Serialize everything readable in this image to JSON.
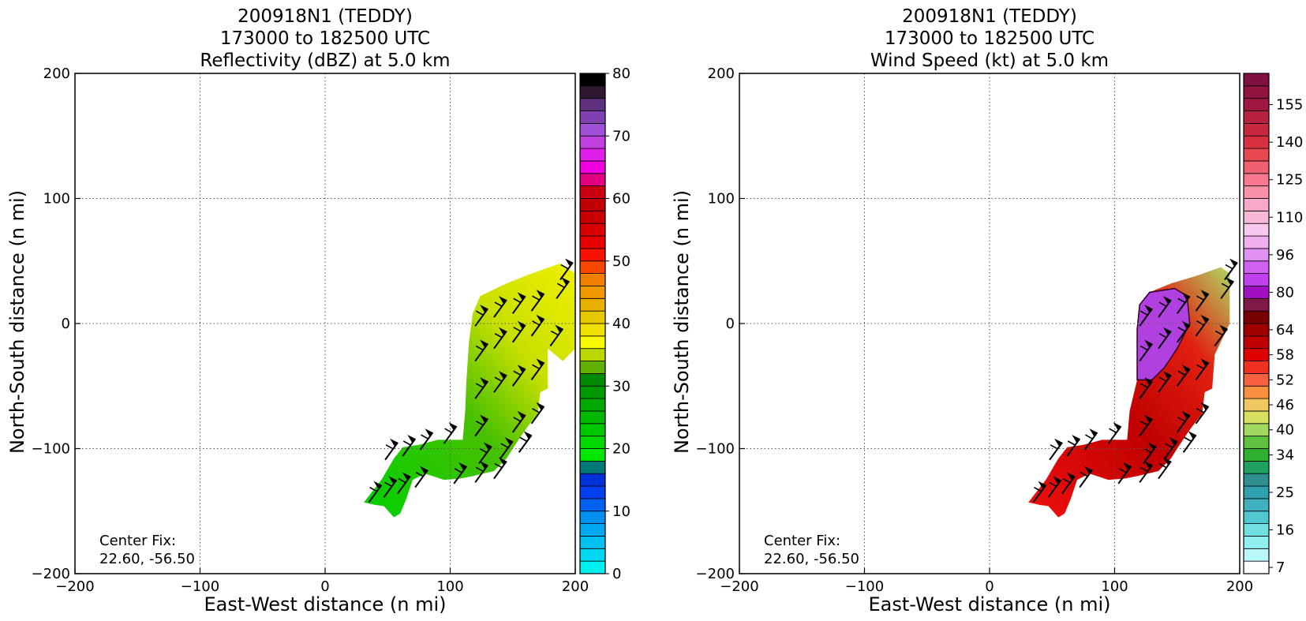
{
  "chart_data": [
    {
      "type": "heatmap",
      "title": [
        "200918N1 (TEDDY)",
        "173000 to 182500 UTC",
        "Reflectivity (dBZ) at 5.0 km"
      ],
      "xlabel": "East-West distance (n mi)",
      "ylabel": "North-South distance (n mi)",
      "xlim": [
        -200,
        200
      ],
      "ylim": [
        -200,
        200
      ],
      "x_ticks": [
        -200,
        -100,
        0,
        100,
        200
      ],
      "y_ticks": [
        -200,
        -100,
        0,
        100,
        200
      ],
      "x_tick_labels": [
        "−200",
        "−100",
        "0",
        "100",
        "200"
      ],
      "y_tick_labels": [
        "−200",
        "−100",
        "0",
        "100",
        "200"
      ],
      "grid": true,
      "annotation": [
        "Center Fix:",
        "22.60, -56.50"
      ],
      "colorbar": {
        "min": 0,
        "max": 80,
        "ticks": [
          0,
          10,
          20,
          30,
          40,
          50,
          60,
          70,
          80
        ],
        "colors": [
          "#00f0f0",
          "#00d8f0",
          "#00c0f0",
          "#00a8f0",
          "#0090f0",
          "#0060f0",
          "#0040f0",
          "#0030d8",
          "#007878",
          "#00e800",
          "#00d800",
          "#00c800",
          "#00b800",
          "#00a800",
          "#009800",
          "#008800",
          "#60b000",
          "#b8d800",
          "#f8f800",
          "#f0e000",
          "#e8c800",
          "#e8b000",
          "#f09800",
          "#f08000",
          "#f84800",
          "#f81000",
          "#e80000",
          "#d80000",
          "#c80000",
          "#c00000",
          "#c80010",
          "#e00080",
          "#f000e0",
          "#e020e8",
          "#c040e0",
          "#a050d8",
          "#8040b0",
          "#603080",
          "#301830",
          "#000000"
        ]
      },
      "region": {
        "color_hint": "green-yellow reflectivity band",
        "polygon": [
          [
            31,
            -143
          ],
          [
            45,
            -125
          ],
          [
            55,
            -108
          ],
          [
            62,
            -99
          ],
          [
            75,
            -97
          ],
          [
            90,
            -93
          ],
          [
            110,
            -93
          ],
          [
            112,
            -70
          ],
          [
            113,
            -45
          ],
          [
            115,
            -15
          ],
          [
            118,
            8
          ],
          [
            124,
            22
          ],
          [
            145,
            32
          ],
          [
            165,
            40
          ],
          [
            188,
            48
          ],
          [
            200,
            40
          ],
          [
            200,
            -20
          ],
          [
            190,
            -30
          ],
          [
            178,
            -20
          ],
          [
            178,
            -52
          ],
          [
            172,
            -55
          ],
          [
            170,
            -72
          ],
          [
            160,
            -85
          ],
          [
            150,
            -100
          ],
          [
            145,
            -108
          ],
          [
            135,
            -118
          ],
          [
            118,
            -122
          ],
          [
            108,
            -124
          ],
          [
            95,
            -125
          ],
          [
            80,
            -120
          ],
          [
            70,
            -125
          ],
          [
            65,
            -140
          ],
          [
            60,
            -152
          ],
          [
            55,
            -155
          ],
          [
            47,
            -146
          ],
          [
            40,
            -145
          ]
        ]
      },
      "wind_barbs": [
        [
          35,
          -143
        ],
        [
          47,
          -139
        ],
        [
          58,
          -136
        ],
        [
          72,
          -131
        ],
        [
          48,
          -109
        ],
        [
          62,
          -106
        ],
        [
          76,
          -101
        ],
        [
          95,
          -96
        ],
        [
          103,
          -128
        ],
        [
          120,
          -127
        ],
        [
          135,
          -124
        ],
        [
          123,
          -112
        ],
        [
          140,
          -108
        ],
        [
          155,
          -103
        ],
        [
          150,
          -87
        ],
        [
          165,
          -80
        ],
        [
          120,
          -90
        ],
        [
          120,
          -60
        ],
        [
          135,
          -55
        ],
        [
          150,
          -50
        ],
        [
          165,
          -45
        ],
        [
          120,
          -30
        ],
        [
          135,
          -20
        ],
        [
          150,
          -15
        ],
        [
          165,
          -10
        ],
        [
          180,
          -18
        ],
        [
          120,
          -2
        ],
        [
          135,
          5
        ],
        [
          150,
          8
        ],
        [
          165,
          10
        ],
        [
          185,
          20
        ],
        [
          188,
          35
        ]
      ]
    },
    {
      "type": "heatmap",
      "title": [
        "200918N1 (TEDDY)",
        "173000 to 182500 UTC",
        "Wind Speed (kt) at 5.0 km"
      ],
      "xlabel": "East-West distance (n mi)",
      "ylabel": "North-South distance (n mi)",
      "xlim": [
        -200,
        200
      ],
      "ylim": [
        -200,
        200
      ],
      "x_ticks": [
        -200,
        -100,
        0,
        100,
        200
      ],
      "y_ticks": [
        -200,
        -100,
        0,
        100,
        200
      ],
      "x_tick_labels": [
        "−200",
        "−100",
        "0",
        "100",
        "200"
      ],
      "y_tick_labels": [
        "−200",
        "−100",
        "0",
        "100",
        "200"
      ],
      "grid": true,
      "annotation": [
        "Center Fix:",
        "22.60, -56.50"
      ],
      "colorbar": {
        "ticks": [
          "7",
          "16",
          "25",
          "34",
          "40",
          "46",
          "52",
          "58",
          "64",
          "80",
          "96",
          "110",
          "125",
          "140",
          "155"
        ],
        "tick_bin_index": [
          0,
          3,
          6,
          9,
          11,
          13,
          15,
          17,
          19,
          22,
          25,
          28,
          31,
          34,
          37
        ],
        "colors": [
          "#ffffff",
          "#b8f8f8",
          "#90f0f0",
          "#70e0e0",
          "#50c8d0",
          "#40b0c0",
          "#30a0b0",
          "#309090",
          "#20a060",
          "#30b030",
          "#60c040",
          "#a0d860",
          "#d8e060",
          "#f0c860",
          "#f89040",
          "#f86040",
          "#f03020",
          "#e00000",
          "#c00000",
          "#a00000",
          "#780000",
          "#801848",
          "#a010c0",
          "#c040f0",
          "#d060f0",
          "#e090f0",
          "#f0b0f0",
          "#f8c8f0",
          "#f8b8d8",
          "#f8a8c8",
          "#f890a8",
          "#f87890",
          "#f06070",
          "#e84850",
          "#d83040",
          "#c82840",
          "#b82040",
          "#a01840",
          "#901440",
          "#801040"
        ]
      },
      "region": {
        "color_hint": "red-purple wind speed band",
        "polygon": [
          [
            31,
            -143
          ],
          [
            45,
            -125
          ],
          [
            55,
            -108
          ],
          [
            62,
            -99
          ],
          [
            75,
            -97
          ],
          [
            90,
            -93
          ],
          [
            110,
            -93
          ],
          [
            112,
            -70
          ],
          [
            118,
            -45
          ],
          [
            118,
            -25
          ],
          [
            118,
            -5
          ],
          [
            120,
            15
          ],
          [
            128,
            25
          ],
          [
            145,
            32
          ],
          [
            165,
            38
          ],
          [
            185,
            45
          ],
          [
            192,
            40
          ],
          [
            192,
            0
          ],
          [
            180,
            -25
          ],
          [
            178,
            -52
          ],
          [
            172,
            -55
          ],
          [
            170,
            -72
          ],
          [
            160,
            -85
          ],
          [
            150,
            -100
          ],
          [
            145,
            -108
          ],
          [
            135,
            -118
          ],
          [
            118,
            -122
          ],
          [
            108,
            -124
          ],
          [
            95,
            -125
          ],
          [
            80,
            -120
          ],
          [
            70,
            -125
          ],
          [
            65,
            -140
          ],
          [
            60,
            -152
          ],
          [
            55,
            -155
          ],
          [
            47,
            -146
          ],
          [
            40,
            -145
          ]
        ],
        "inner_polygon": [
          [
            118,
            -45
          ],
          [
            118,
            -5
          ],
          [
            120,
            15
          ],
          [
            128,
            25
          ],
          [
            148,
            28
          ],
          [
            158,
            22
          ],
          [
            160,
            0
          ],
          [
            150,
            -20
          ],
          [
            140,
            -35
          ],
          [
            130,
            -45
          ]
        ]
      },
      "wind_barbs": [
        [
          35,
          -143
        ],
        [
          47,
          -139
        ],
        [
          58,
          -136
        ],
        [
          72,
          -131
        ],
        [
          48,
          -109
        ],
        [
          62,
          -106
        ],
        [
          76,
          -101
        ],
        [
          95,
          -96
        ],
        [
          103,
          -128
        ],
        [
          120,
          -127
        ],
        [
          135,
          -124
        ],
        [
          123,
          -112
        ],
        [
          140,
          -108
        ],
        [
          155,
          -103
        ],
        [
          150,
          -87
        ],
        [
          165,
          -80
        ],
        [
          120,
          -90
        ],
        [
          120,
          -60
        ],
        [
          135,
          -55
        ],
        [
          150,
          -50
        ],
        [
          165,
          -45
        ],
        [
          120,
          -30
        ],
        [
          135,
          -20
        ],
        [
          150,
          -15
        ],
        [
          165,
          -10
        ],
        [
          180,
          -18
        ],
        [
          120,
          -2
        ],
        [
          135,
          5
        ],
        [
          150,
          8
        ],
        [
          165,
          10
        ],
        [
          185,
          20
        ],
        [
          188,
          35
        ]
      ]
    }
  ]
}
